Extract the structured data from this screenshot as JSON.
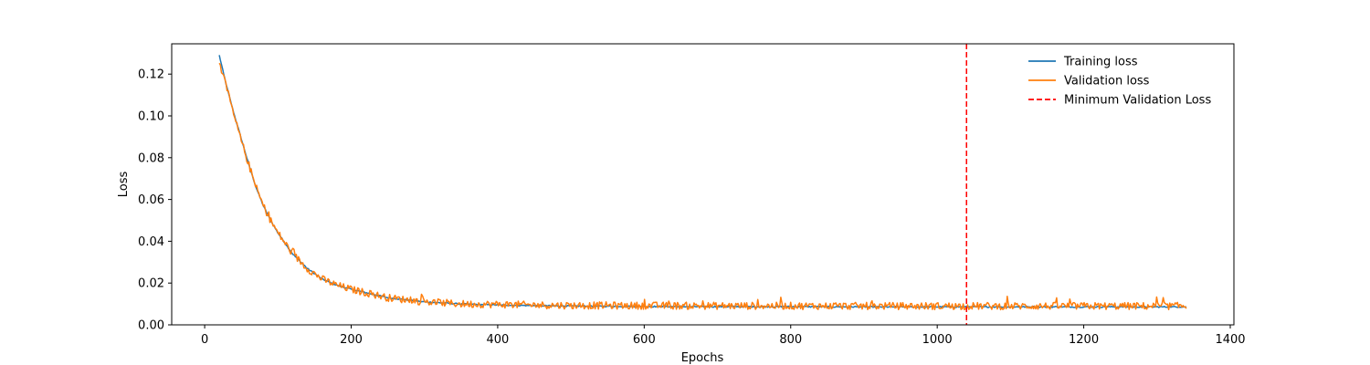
{
  "chart_data": {
    "type": "line",
    "title": "",
    "xlabel": "Epochs",
    "ylabel": "Loss",
    "xlim": [
      -45,
      1405
    ],
    "ylim": [
      0,
      0.1345
    ],
    "xticks": [
      0,
      200,
      400,
      600,
      800,
      1000,
      1200,
      1400
    ],
    "xtick_labels": [
      "0",
      "200",
      "400",
      "600",
      "800",
      "1000",
      "1200",
      "1400"
    ],
    "yticks": [
      0.0,
      0.02,
      0.04,
      0.06,
      0.08,
      0.1,
      0.12
    ],
    "ytick_labels": [
      "0.00",
      "0.02",
      "0.04",
      "0.06",
      "0.08",
      "0.10",
      "0.12"
    ],
    "grid": false,
    "legend_position": "top-right",
    "series": [
      {
        "name": "Training loss",
        "color": "#1f77b4",
        "style": "solid",
        "x": [
          20,
          30,
          40,
          50,
          60,
          70,
          80,
          90,
          100,
          120,
          140,
          160,
          180,
          200,
          225,
          250,
          300,
          350,
          400,
          450,
          500,
          600,
          700,
          800,
          900,
          1000,
          1100,
          1200,
          1300,
          1340
        ],
        "y": [
          0.129,
          0.114,
          0.101,
          0.089,
          0.077,
          0.066,
          0.057,
          0.05,
          0.044,
          0.034,
          0.027,
          0.022,
          0.019,
          0.017,
          0.015,
          0.013,
          0.011,
          0.01,
          0.0095,
          0.0092,
          0.009,
          0.0088,
          0.0087,
          0.0087,
          0.0086,
          0.0086,
          0.0086,
          0.0086,
          0.0086,
          0.0086
        ]
      },
      {
        "name": "Validation loss",
        "color": "#ff7f0e",
        "style": "solid",
        "x": [
          20,
          30,
          40,
          50,
          60,
          70,
          80,
          90,
          100,
          120,
          140,
          160,
          180,
          200,
          225,
          250,
          300,
          350,
          400,
          450,
          500,
          600,
          700,
          800,
          900,
          1000,
          1100,
          1200,
          1300,
          1340
        ],
        "y": [
          0.126,
          0.113,
          0.1,
          0.088,
          0.077,
          0.066,
          0.057,
          0.05,
          0.044,
          0.034,
          0.027,
          0.022,
          0.019,
          0.017,
          0.015,
          0.013,
          0.011,
          0.01,
          0.0098,
          0.0095,
          0.0093,
          0.0092,
          0.0091,
          0.0091,
          0.009,
          0.009,
          0.009,
          0.009,
          0.009,
          0.009
        ]
      }
    ],
    "vlines": [
      {
        "name": "Minimum Validation Loss",
        "x": 1040,
        "color": "#ff0000",
        "style": "dashed"
      }
    ]
  }
}
